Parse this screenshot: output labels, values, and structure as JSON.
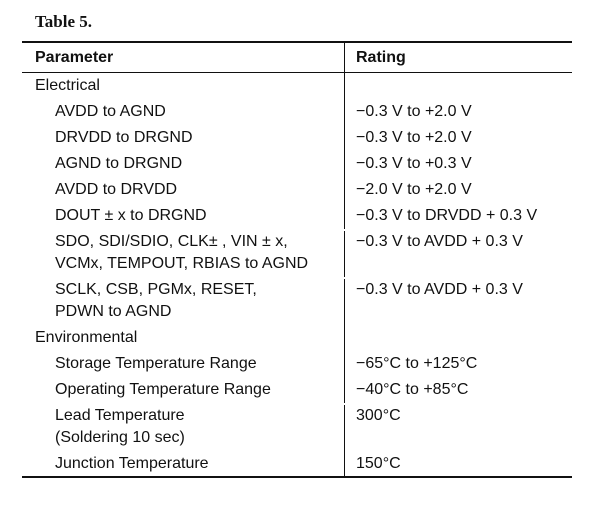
{
  "table_title": "Table 5.",
  "headers": {
    "parameter": "Parameter",
    "rating": "Rating"
  },
  "sections": [
    {
      "label": "Electrical",
      "rows": [
        {
          "parameter": [
            "AVDD to AGND"
          ],
          "rating": "−0.3 V to +2.0 V"
        },
        {
          "parameter": [
            "DRVDD to DRGND"
          ],
          "rating": "−0.3 V to +2.0 V"
        },
        {
          "parameter": [
            "AGND to DRGND"
          ],
          "rating": "−0.3 V to +0.3 V"
        },
        {
          "parameter": [
            "AVDD to DRVDD"
          ],
          "rating": "−2.0 V to +2.0 V"
        },
        {
          "parameter": [
            "DOUT ± x to DRGND"
          ],
          "rating": "−0.3 V to DRVDD + 0.3 V"
        },
        {
          "parameter": [
            "SDO, SDI/SDIO, CLK± , VIN ± x,",
            "VCMx, TEMPOUT, RBIAS to AGND"
          ],
          "rating": "−0.3 V to AVDD + 0.3 V"
        },
        {
          "parameter": [
            "SCLK, CSB, PGMx, RESET,",
            "PDWN to AGND"
          ],
          "rating": "−0.3 V to AVDD + 0.3 V"
        }
      ]
    },
    {
      "label": "Environmental",
      "rows": [
        {
          "parameter": [
            "Storage Temperature Range"
          ],
          "rating": "−65°C to +125°C"
        },
        {
          "parameter": [
            "Operating Temperature Range"
          ],
          "rating": "−40°C to +85°C"
        },
        {
          "parameter": [
            "Lead Temperature",
            "(Soldering 10 sec)"
          ],
          "rating": "300°C"
        },
        {
          "parameter": [
            "Junction Temperature"
          ],
          "rating": "150°C"
        }
      ]
    }
  ]
}
